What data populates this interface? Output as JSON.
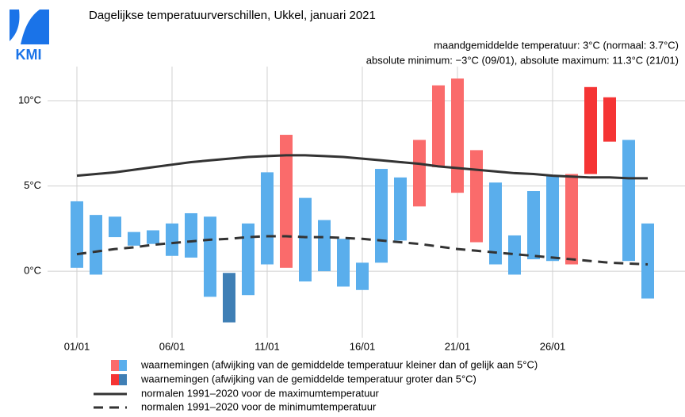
{
  "chart_data": {
    "type": "range_bar",
    "title": "Dagelijkse temperatuurverschillen, Ukkel, januari 2021",
    "subtitle": [
      "maandgemiddelde temperatuur: 3°C (normaal: 3.7°C)",
      "absolute minimum: −3°C (09/01), absolute maximum: 11.3°C (21/01)"
    ],
    "logo": "KMI",
    "categories": [
      "01/01",
      null,
      null,
      null,
      null,
      "06/01",
      null,
      null,
      null,
      null,
      "11/01",
      null,
      null,
      null,
      null,
      "16/01",
      null,
      null,
      null,
      null,
      "21/01",
      null,
      null,
      null,
      null,
      "26/01",
      null,
      null,
      null,
      null,
      null
    ],
    "low": [
      0.2,
      -0.2,
      2.0,
      1.5,
      1.6,
      0.9,
      0.8,
      -1.5,
      -3.0,
      -1.4,
      0.4,
      0.2,
      -0.6,
      0.0,
      -0.9,
      -1.1,
      0.5,
      1.8,
      3.8,
      6.1,
      4.6,
      1.7,
      0.4,
      -0.2,
      0.7,
      0.6,
      0.4,
      5.7,
      7.6,
      0.6,
      -1.6
    ],
    "high": [
      4.1,
      3.3,
      3.2,
      2.3,
      2.4,
      2.8,
      3.4,
      3.2,
      -0.1,
      2.8,
      5.8,
      8.0,
      4.3,
      3.0,
      1.9,
      0.5,
      6.0,
      5.5,
      7.7,
      10.9,
      11.3,
      7.1,
      5.2,
      2.1,
      4.7,
      5.6,
      5.7,
      10.8,
      10.2,
      7.7,
      2.8
    ],
    "colors": [
      "#5aaeec",
      "#5aaeec",
      "#5aaeec",
      "#5aaeec",
      "#5aaeec",
      "#5aaeec",
      "#5aaeec",
      "#5aaeec",
      "#3f7fb5",
      "#5aaeec",
      "#5aaeec",
      "#fa6b6b",
      "#5aaeec",
      "#5aaeec",
      "#5aaeec",
      "#5aaeec",
      "#5aaeec",
      "#5aaeec",
      "#fa6b6b",
      "#fa6b6b",
      "#fa6b6b",
      "#fa6b6b",
      "#5aaeec",
      "#5aaeec",
      "#5aaeec",
      "#5aaeec",
      "#fa6b6b",
      "#f53434",
      "#f53434",
      "#5aaeec",
      "#5aaeec"
    ],
    "bar_legend": [
      {
        "name": "waarnemingen (afwijking van de gemiddelde temperatuur kleiner dan of gelijk aan 5°C)",
        "colors": [
          "#fa6b6b",
          "#5aaeec"
        ]
      },
      {
        "name": "waarnemingen (afwijking van de gemiddelde temperatuur groter dan 5°C)",
        "colors": [
          "#f53434",
          "#3f7fb5"
        ]
      }
    ],
    "series": [
      {
        "name": "normalen 1991–2020 voor de maximumtemperatuur",
        "color": "#333333",
        "dash": false,
        "values": [
          5.6,
          5.7,
          5.8,
          5.95,
          6.1,
          6.25,
          6.4,
          6.5,
          6.6,
          6.7,
          6.75,
          6.8,
          6.8,
          6.75,
          6.7,
          6.6,
          6.5,
          6.4,
          6.3,
          6.15,
          6.05,
          5.95,
          5.85,
          5.75,
          5.7,
          5.6,
          5.55,
          5.5,
          5.5,
          5.45,
          5.45
        ]
      },
      {
        "name": "normalen 1991–2020 voor de minimumtemperatuur",
        "color": "#333333",
        "dash": true,
        "values": [
          1.0,
          1.15,
          1.3,
          1.4,
          1.55,
          1.65,
          1.75,
          1.85,
          1.9,
          2.0,
          2.05,
          2.05,
          2.0,
          2.0,
          1.95,
          1.9,
          1.8,
          1.7,
          1.6,
          1.45,
          1.3,
          1.2,
          1.1,
          1.0,
          0.9,
          0.8,
          0.7,
          0.6,
          0.5,
          0.45,
          0.4
        ]
      }
    ],
    "ylim": [
      -3.9,
      12.0
    ],
    "yticks": [
      {
        "value": 0,
        "label": "0°C"
      },
      {
        "value": 5,
        "label": "5°C"
      },
      {
        "value": 10,
        "label": "10°C"
      }
    ],
    "grid": true
  }
}
